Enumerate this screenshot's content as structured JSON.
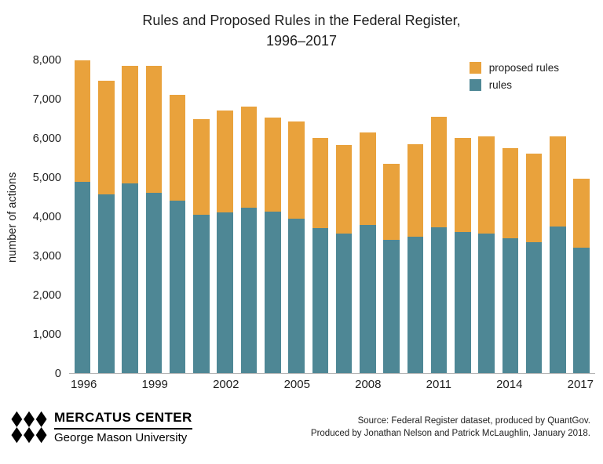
{
  "title": {
    "line1": "Rules and Proposed Rules in the Federal Register,",
    "line2": "1996–2017"
  },
  "chart_data": {
    "type": "bar",
    "stacked": true,
    "categories": [
      "1996",
      "1997",
      "1998",
      "1999",
      "2000",
      "2001",
      "2002",
      "2003",
      "2004",
      "2005",
      "2006",
      "2007",
      "2008",
      "2009",
      "2010",
      "2011",
      "2012",
      "2013",
      "2014",
      "2015",
      "2016",
      "2017"
    ],
    "series": [
      {
        "name": "proposed rules",
        "color": "#E9A23C",
        "values": [
          3100,
          2900,
          3000,
          3250,
          2700,
          2430,
          2600,
          2570,
          2400,
          2470,
          2300,
          2250,
          2370,
          1950,
          2360,
          2830,
          2400,
          2480,
          2310,
          2260,
          2300,
          1760
        ]
      },
      {
        "name": "rules",
        "color": "#4E8795",
        "values": [
          4900,
          4560,
          4850,
          4600,
          4400,
          4050,
          4100,
          4230,
          4120,
          3950,
          3700,
          3570,
          3780,
          3400,
          3490,
          3720,
          3610,
          3560,
          3440,
          3340,
          3740,
          3200
        ]
      }
    ],
    "ylabel": "number of actions",
    "xlabel": "",
    "ylim": [
      0,
      8000
    ],
    "yticks": [
      "0",
      "1,000",
      "2,000",
      "3,000",
      "4,000",
      "5,000",
      "6,000",
      "7,000",
      "8,000"
    ],
    "xticks": [
      "1996",
      "1999",
      "2002",
      "2005",
      "2008",
      "2011",
      "2014",
      "2017"
    ],
    "legend": [
      {
        "label": "proposed rules",
        "color": "#E9A23C"
      },
      {
        "label": "rules",
        "color": "#4E8795"
      }
    ],
    "legend_position": "top-right",
    "grid": false
  },
  "footer": {
    "brand_line1": "MERCATUS CENTER",
    "brand_line2": "George Mason University",
    "source_line1": "Source: Federal Register dataset, produced by QuantGov.",
    "source_line2": "Produced by Jonathan Nelson and Patrick McLaughlin, January 2018."
  }
}
